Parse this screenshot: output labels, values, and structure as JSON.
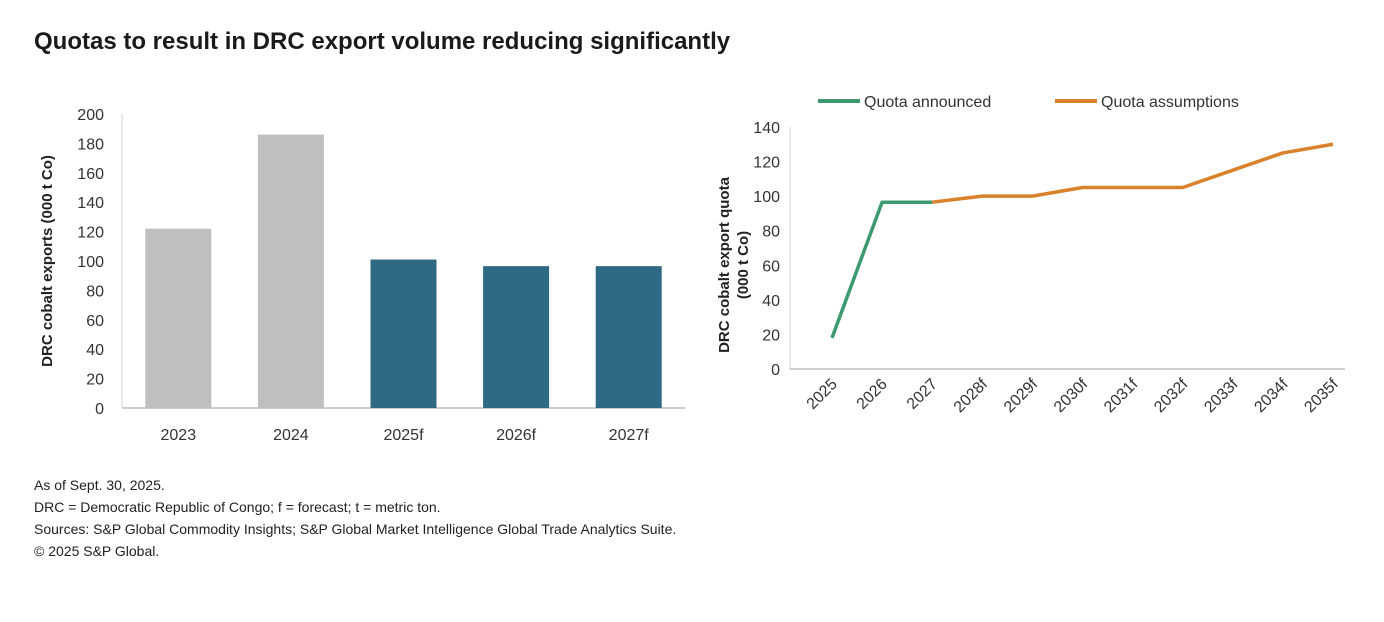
{
  "title": "Quotas to result in DRC export volume reducing significantly",
  "notes": [
    "As of Sept. 30, 2025.",
    "DRC = Democratic Republic of Congo; f = forecast; t = metric ton.",
    "Sources: S&P Global Commodity Insights; S&P Global Market Intelligence Global Trade Analytics Suite.",
    "© 2025 S&P Global."
  ],
  "chart_data": [
    {
      "type": "bar",
      "categories": [
        "2023",
        "2024",
        "2025f",
        "2026f",
        "2027f"
      ],
      "values": [
        122,
        186,
        101,
        96.5,
        96.5
      ],
      "bar_colors": [
        "#bfbfbf",
        "#bfbfbf",
        "#2e6a84",
        "#2e6a84",
        "#2e6a84"
      ],
      "ylabel": "DRC cobalt exports (000 t Co)",
      "ylim": [
        0,
        200
      ],
      "yticks": [
        0,
        20,
        40,
        60,
        80,
        100,
        120,
        140,
        160,
        180,
        200
      ],
      "grid": false
    },
    {
      "type": "line",
      "categories": [
        "2025",
        "2026",
        "2027",
        "2028f",
        "2029f",
        "2030f",
        "2031f",
        "2032f",
        "2033f",
        "2034f",
        "2035f"
      ],
      "series": [
        {
          "name": "Quota announced",
          "color": "#3c9a6e",
          "values": [
            18,
            96.5,
            96.5,
            null,
            null,
            null,
            null,
            null,
            null,
            null,
            null
          ]
        },
        {
          "name": "Quota assumptions",
          "color": "#d9822b",
          "values": [
            null,
            null,
            96.5,
            100,
            100,
            105,
            105,
            105,
            115,
            125,
            130
          ]
        }
      ],
      "ylabel": "DRC cobalt export quota (000 t Co)",
      "ylim": [
        0,
        140
      ],
      "yticks": [
        0,
        20,
        40,
        60,
        80,
        100,
        120,
        140
      ],
      "legend": "top",
      "grid": false
    }
  ]
}
